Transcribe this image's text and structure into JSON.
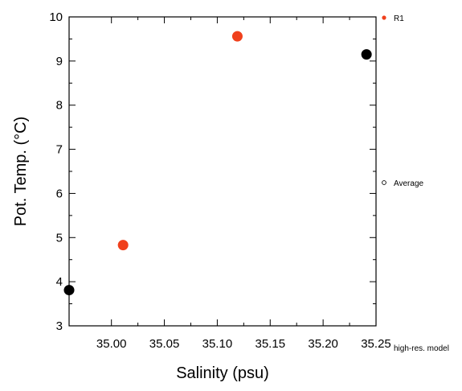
{
  "chart_data": {
    "type": "scatter",
    "xlabel": "Salinity (psu)",
    "ylabel": "Pot. Temp. (°C)",
    "xlim": [
      34.96,
      35.25
    ],
    "ylim": [
      3,
      10
    ],
    "x_ticks": [
      35.0,
      35.05,
      35.1,
      35.15,
      35.2,
      35.25
    ],
    "x_tick_labels": [
      "35.00",
      "35.05",
      "35.10",
      "35.15",
      "35.20",
      "35.25"
    ],
    "y_ticks": [
      3,
      4,
      5,
      6,
      7,
      8,
      9,
      10
    ],
    "y_tick_labels": [
      "3",
      "4",
      "5",
      "6",
      "7",
      "8",
      "9",
      "10"
    ],
    "grid": false,
    "legend_placement": "right",
    "series": [
      {
        "name": "R1",
        "color": "#f0401c",
        "points": [
          {
            "x": 35.011,
            "y": 4.83
          },
          {
            "x": 35.119,
            "y": 9.56
          }
        ]
      },
      {
        "name": "",
        "color": "#000000",
        "points": [
          {
            "x": 34.96,
            "y": 3.81
          },
          {
            "x": 35.241,
            "y": 9.15
          }
        ]
      }
    ],
    "legend": [
      {
        "label": "R1",
        "marker": "filled-dot",
        "color": "#f0401c"
      },
      {
        "label": "Average",
        "marker": "hollow-dot",
        "color": "#000000"
      },
      {
        "label": "high-res. model",
        "marker": "none",
        "color": "#000000"
      }
    ]
  }
}
